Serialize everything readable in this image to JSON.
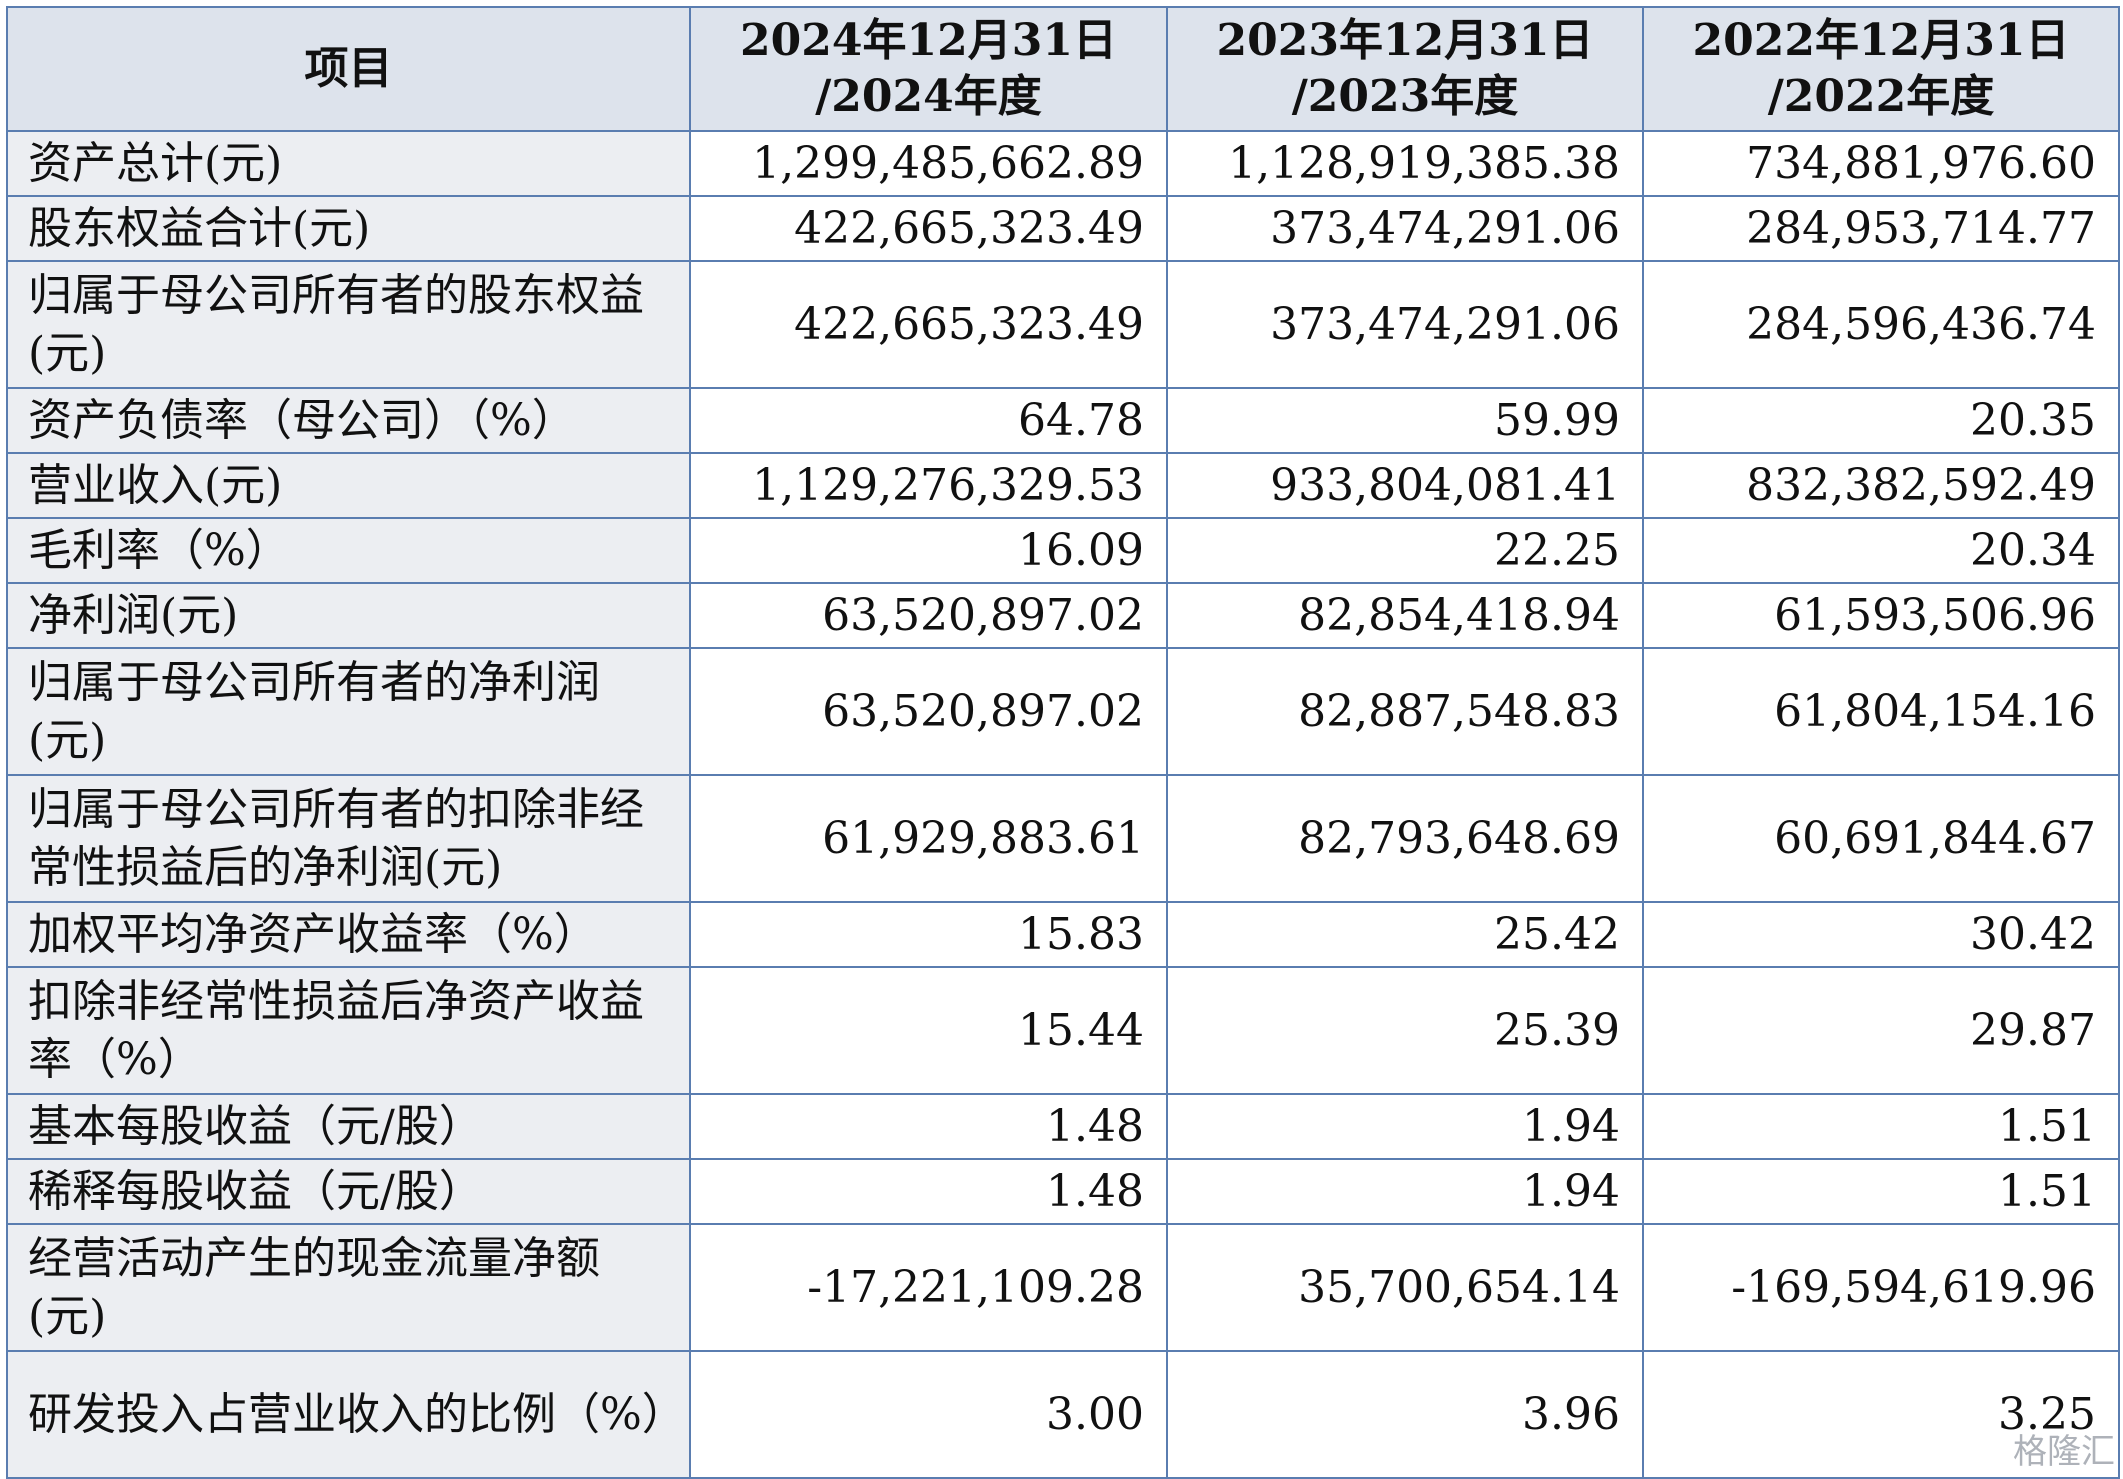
{
  "table": {
    "header": [
      [
        "项目"
      ],
      [
        "2024年12月31日",
        "/2024年度"
      ],
      [
        "2023年12月31日",
        "/2023年度"
      ],
      [
        "2022年12月31日",
        "/2022年度"
      ]
    ],
    "rows": [
      [
        "资产总计(元)",
        "1,299,485,662.89",
        "1,128,919,385.38",
        "734,881,976.60"
      ],
      [
        "股东权益合计(元)",
        "422,665,323.49",
        "373,474,291.06",
        "284,953,714.77"
      ],
      [
        "归属于母公司所有者的股东权益(元)",
        "422,665,323.49",
        "373,474,291.06",
        "284,596,436.74"
      ],
      [
        "资产负债率（母公司）（%）",
        "64.78",
        "59.99",
        "20.35"
      ],
      [
        "营业收入(元)",
        "1,129,276,329.53",
        "933,804,081.41",
        "832,382,592.49"
      ],
      [
        "毛利率（%）",
        "16.09",
        "22.25",
        "20.34"
      ],
      [
        "净利润(元)",
        "63,520,897.02",
        "82,854,418.94",
        "61,593,506.96"
      ],
      [
        "归属于母公司所有者的净利润(元)",
        "63,520,897.02",
        "82,887,548.83",
        "61,804,154.16"
      ],
      [
        "归属于母公司所有者的扣除非经常性损益后的净利润(元)",
        "61,929,883.61",
        "82,793,648.69",
        "60,691,844.67"
      ],
      [
        "加权平均净资产收益率（%）",
        "15.83",
        "25.42",
        "30.42"
      ],
      [
        "扣除非经常性损益后净资产收益率（%）",
        "15.44",
        "25.39",
        "29.87"
      ],
      [
        "基本每股收益（元/股）",
        "1.48",
        "1.94",
        "1.51"
      ],
      [
        "稀释每股收益（元/股）",
        "1.48",
        "1.94",
        "1.51"
      ],
      [
        "经营活动产生的现金流量净额(元)",
        "-17,221,109.28",
        "35,700,654.14",
        "-169,594,619.96"
      ],
      [
        "研发投入占营业收入的比例（%）",
        "3.00",
        "3.96",
        "3.25"
      ]
    ]
  },
  "watermark": "格隆汇"
}
